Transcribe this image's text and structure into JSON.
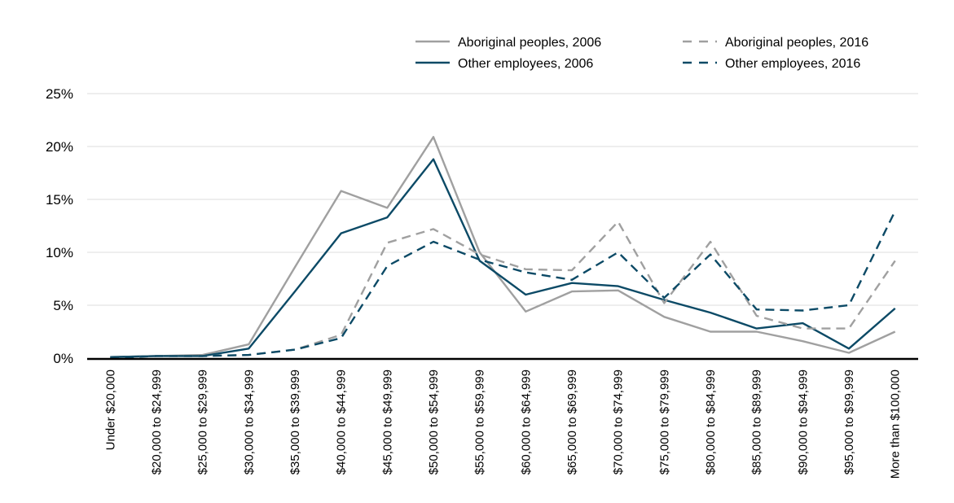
{
  "chart_data": {
    "type": "line",
    "categories": [
      "Under $20,000",
      "$20,000 to $24,999",
      "$25,000 to $29,999",
      "$30,000 to $34,999",
      "$35,000 to $39,999",
      "$40,000 to $44,999",
      "$45,000 to $49,999",
      "$50,000 to $54,999",
      "$55,000 to $59,999",
      "$60,000 to $64,999",
      "$65,000 to $69,999",
      "$70,000 to $74,999",
      "$75,000 to $79,999",
      "$80,000 to $84,999",
      "$85,000 to $89,999",
      "$90,000 to $94,999",
      "$95,000 to $99,999",
      "More than $100,000"
    ],
    "series": [
      {
        "name": "Aboriginal peoples, 2006",
        "color": "#a0a0a0",
        "dash": "solid",
        "values": [
          0.1,
          0.2,
          0.3,
          1.3,
          8.6,
          15.8,
          14.2,
          20.9,
          10.0,
          4.4,
          6.3,
          6.4,
          3.9,
          2.5,
          2.5,
          1.6,
          0.5,
          2.5
        ]
      },
      {
        "name": "Other employees, 2006",
        "color": "#0c4a66",
        "dash": "solid",
        "values": [
          0.1,
          0.2,
          0.2,
          0.9,
          6.3,
          11.8,
          13.3,
          18.8,
          9.2,
          6.0,
          7.1,
          6.8,
          5.5,
          4.3,
          2.8,
          3.3,
          0.9,
          4.7
        ]
      },
      {
        "name": "Aboriginal peoples, 2016",
        "color": "#a0a0a0",
        "dash": "dashed",
        "values": [
          0.0,
          0.2,
          0.2,
          0.3,
          0.8,
          2.2,
          10.9,
          12.2,
          9.8,
          8.4,
          8.3,
          12.9,
          5.2,
          11.0,
          4.0,
          2.8,
          2.8,
          9.2
        ]
      },
      {
        "name": "Other employees, 2016",
        "color": "#0c4a66",
        "dash": "dashed",
        "values": [
          0.0,
          0.2,
          0.2,
          0.3,
          0.8,
          1.9,
          8.7,
          11.0,
          9.3,
          8.1,
          7.4,
          10.0,
          5.7,
          9.8,
          4.6,
          4.5,
          5.0,
          13.9
        ]
      }
    ],
    "y_ticks": [
      "0%",
      "5%",
      "10%",
      "15%",
      "20%",
      "25%"
    ],
    "ylim": [
      0,
      25
    ],
    "grid": "horizontal",
    "legend_placement": "top-right"
  }
}
